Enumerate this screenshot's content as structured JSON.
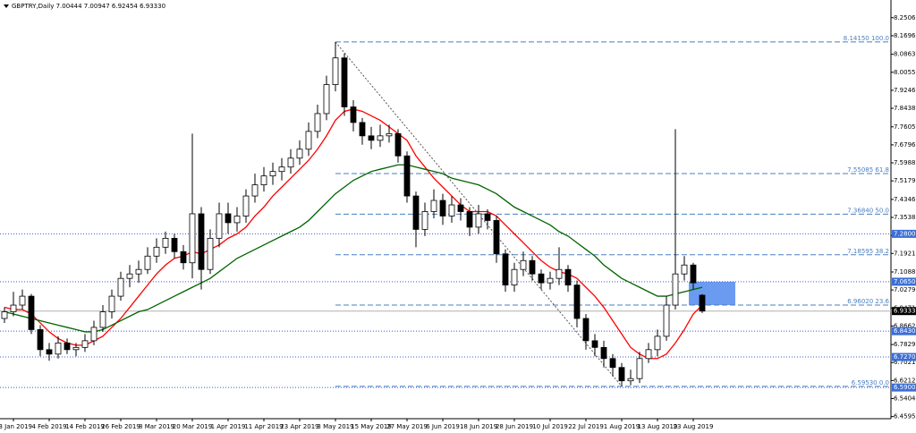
{
  "chart_data": {
    "type": "candlestick",
    "title": "GBPTRY,Daily  7.00444 7.00947 6.92454 6.93330",
    "ylim": [
      6.45,
      8.33
    ],
    "yticks": [
      8.25065,
      8.16965,
      8.08635,
      {
        "value": 8.0055,
        "label": "8.00550"
      },
      7.92465,
      {
        "value": 7.8438,
        "label": "7.84380"
      },
      {
        "value": 7.7605,
        "label": "7.76050"
      },
      7.67965,
      {
        "value": 7.5988,
        "label": "7.59880"
      },
      7.51795,
      7.43465,
      {
        "value": 7.3538,
        "label": "7.35380"
      },
      7.27295,
      {
        "value": 7.1921,
        "label": "7.19210"
      },
      {
        "value": 7.1088,
        "label": "7.10880"
      },
      7.02795,
      {
        "value": 6.9471,
        "label": "6.94710"
      },
      6.86625,
      6.78295,
      {
        "value": 6.7021,
        "label": "6.70210"
      },
      6.62125,
      {
        "value": 6.5404,
        "label": "6.54040"
      },
      6.45955
    ],
    "xticks": [
      {
        "value": 1,
        "label": "23 Jan 2019"
      },
      {
        "value": 5,
        "label": "4 Feb 2019"
      },
      {
        "value": 9,
        "label": "14 Feb 2019"
      },
      {
        "value": 13,
        "label": "26 Feb 2019"
      },
      {
        "value": 17,
        "label": "8 Mar 2019"
      },
      {
        "value": 21,
        "label": "20 Mar 2019"
      },
      {
        "value": 25,
        "label": "1 Apr 2019"
      },
      {
        "value": 29,
        "label": "11 Apr 2019"
      },
      {
        "value": 33,
        "label": "23 Apr 2019"
      },
      {
        "value": 37,
        "label": "3 May 2019"
      },
      {
        "value": 41,
        "label": "15 May 2019"
      },
      {
        "value": 45,
        "label": "27 May 2019"
      },
      {
        "value": 49,
        "label": "6 Jun 2019"
      },
      {
        "value": 53,
        "label": "18 Jun 2019"
      },
      {
        "value": 57,
        "label": "28 Jun 2019"
      },
      {
        "value": 61,
        "label": "10 Jul 2019"
      },
      {
        "value": 65,
        "label": "22 Jul 2019"
      },
      {
        "value": 69,
        "label": "1 Aug 2019"
      },
      {
        "value": 73,
        "label": "13 Aug 2019"
      },
      {
        "value": 77,
        "label": "23 Aug 2019"
      }
    ],
    "ohlc": [
      [
        6.9,
        6.95,
        6.88,
        6.93
      ],
      [
        6.93,
        7.02,
        6.91,
        6.96
      ],
      [
        6.96,
        7.03,
        6.94,
        7.0
      ],
      [
        7.0,
        7.01,
        6.83,
        6.85
      ],
      [
        6.85,
        6.87,
        6.73,
        6.76
      ],
      [
        6.76,
        6.79,
        6.71,
        6.74
      ],
      [
        6.74,
        6.82,
        6.72,
        6.79
      ],
      [
        6.79,
        6.81,
        6.74,
        6.76
      ],
      [
        6.76,
        6.79,
        6.73,
        6.77
      ],
      [
        6.77,
        6.83,
        6.75,
        6.8
      ],
      [
        6.8,
        6.89,
        6.78,
        6.86
      ],
      [
        6.86,
        6.96,
        6.84,
        6.93
      ],
      [
        6.93,
        7.03,
        6.9,
        7.0
      ],
      [
        7.0,
        7.11,
        6.98,
        7.08
      ],
      [
        7.08,
        7.14,
        7.04,
        7.1
      ],
      [
        7.1,
        7.16,
        7.06,
        7.12
      ],
      [
        7.12,
        7.22,
        7.1,
        7.18
      ],
      [
        7.18,
        7.26,
        7.15,
        7.22
      ],
      [
        7.22,
        7.29,
        7.19,
        7.26
      ],
      [
        7.26,
        7.28,
        7.17,
        7.2
      ],
      [
        7.2,
        7.23,
        7.12,
        7.15
      ],
      [
        7.15,
        7.73,
        7.08,
        7.37
      ],
      [
        7.37,
        7.4,
        7.03,
        7.12
      ],
      [
        7.12,
        7.3,
        7.1,
        7.26
      ],
      [
        7.26,
        7.42,
        7.22,
        7.37
      ],
      [
        7.37,
        7.42,
        7.28,
        7.33
      ],
      [
        7.33,
        7.4,
        7.29,
        7.36
      ],
      [
        7.36,
        7.48,
        7.33,
        7.45
      ],
      [
        7.45,
        7.55,
        7.42,
        7.5
      ],
      [
        7.5,
        7.58,
        7.47,
        7.54
      ],
      [
        7.54,
        7.6,
        7.5,
        7.56
      ],
      [
        7.56,
        7.62,
        7.52,
        7.58
      ],
      [
        7.58,
        7.66,
        7.55,
        7.62
      ],
      [
        7.62,
        7.7,
        7.59,
        7.66
      ],
      [
        7.66,
        7.78,
        7.63,
        7.74
      ],
      [
        7.74,
        7.86,
        7.71,
        7.82
      ],
      [
        7.82,
        7.99,
        7.79,
        7.95
      ],
      [
        7.95,
        8.1415,
        7.92,
        8.07
      ],
      [
        8.07,
        8.09,
        7.81,
        7.85
      ],
      [
        7.85,
        7.88,
        7.74,
        7.78
      ],
      [
        7.78,
        7.8,
        7.68,
        7.72
      ],
      [
        7.72,
        7.76,
        7.66,
        7.7
      ],
      [
        7.7,
        7.77,
        7.67,
        7.72
      ],
      [
        7.72,
        7.77,
        7.69,
        7.73
      ],
      [
        7.73,
        7.75,
        7.6,
        7.63
      ],
      [
        7.63,
        7.65,
        7.42,
        7.45
      ],
      [
        7.45,
        7.47,
        7.22,
        7.3
      ],
      [
        7.3,
        7.42,
        7.27,
        7.38
      ],
      [
        7.38,
        7.48,
        7.35,
        7.43
      ],
      [
        7.43,
        7.46,
        7.32,
        7.36
      ],
      [
        7.36,
        7.45,
        7.33,
        7.41
      ],
      [
        7.41,
        7.44,
        7.34,
        7.38
      ],
      [
        7.38,
        7.4,
        7.27,
        7.31
      ],
      [
        7.31,
        7.41,
        7.28,
        7.37
      ],
      [
        7.37,
        7.39,
        7.3,
        7.34
      ],
      [
        7.34,
        7.36,
        7.15,
        7.19
      ],
      [
        7.19,
        7.21,
        7.02,
        7.05
      ],
      [
        7.05,
        7.15,
        7.02,
        7.12
      ],
      [
        7.12,
        7.2,
        7.09,
        7.16
      ],
      [
        7.16,
        7.18,
        7.07,
        7.1
      ],
      [
        7.1,
        7.12,
        7.03,
        7.06
      ],
      [
        7.06,
        7.11,
        7.03,
        7.08
      ],
      [
        7.08,
        7.22,
        7.05,
        7.12
      ],
      [
        7.12,
        7.14,
        7.02,
        7.05
      ],
      [
        7.05,
        7.07,
        6.86,
        6.9
      ],
      [
        6.9,
        6.92,
        6.76,
        6.8
      ],
      [
        6.8,
        6.83,
        6.73,
        6.77
      ],
      [
        6.77,
        6.8,
        6.68,
        6.72
      ],
      [
        6.72,
        6.74,
        6.64,
        6.68
      ],
      [
        6.68,
        6.7,
        6.5953,
        6.62
      ],
      [
        6.62,
        6.67,
        6.6,
        6.63
      ],
      [
        6.63,
        6.75,
        6.61,
        6.72
      ],
      [
        6.72,
        6.79,
        6.7,
        6.76
      ],
      [
        6.76,
        6.85,
        6.73,
        6.82
      ],
      [
        6.82,
        7.0,
        6.8,
        6.96
      ],
      [
        6.96,
        7.75,
        6.94,
        7.1
      ],
      [
        7.1,
        7.18,
        7.07,
        7.14
      ],
      [
        7.14,
        7.15,
        7.03,
        7.06
      ],
      [
        7.00444,
        7.00947,
        6.92454,
        6.9333
      ]
    ],
    "series": [
      {
        "color": "#ff0000",
        "values": [
          6.95,
          6.94,
          6.94,
          6.92,
          6.88,
          6.84,
          6.81,
          6.79,
          6.78,
          6.78,
          6.8,
          6.82,
          6.86,
          6.9,
          6.95,
          7.0,
          7.05,
          7.1,
          7.14,
          7.17,
          7.18,
          7.2,
          7.19,
          7.21,
          7.23,
          7.26,
          7.28,
          7.31,
          7.36,
          7.4,
          7.45,
          7.49,
          7.53,
          7.57,
          7.61,
          7.66,
          7.72,
          7.79,
          7.83,
          7.84,
          7.83,
          7.81,
          7.79,
          7.76,
          7.73,
          7.7,
          7.63,
          7.58,
          7.53,
          7.49,
          7.45,
          7.41,
          7.38,
          7.38,
          7.38,
          7.36,
          7.32,
          7.28,
          7.24,
          7.2,
          7.16,
          7.13,
          7.11,
          7.1,
          7.08,
          7.04,
          7.0,
          6.95,
          6.89,
          6.83,
          6.77,
          6.74,
          6.72,
          6.72,
          6.74,
          6.79,
          6.85,
          6.92,
          6.96
        ]
      },
      {
        "color": "#006400",
        "values": [
          6.93,
          6.92,
          6.91,
          6.9,
          6.89,
          6.88,
          6.87,
          6.86,
          6.85,
          6.84,
          6.84,
          6.85,
          6.87,
          6.89,
          6.91,
          6.93,
          6.94,
          6.96,
          6.98,
          7.0,
          7.02,
          7.04,
          7.06,
          7.08,
          7.11,
          7.14,
          7.17,
          7.19,
          7.21,
          7.23,
          7.25,
          7.27,
          7.29,
          7.31,
          7.34,
          7.38,
          7.42,
          7.46,
          7.49,
          7.52,
          7.54,
          7.56,
          7.57,
          7.58,
          7.59,
          7.59,
          7.58,
          7.57,
          7.56,
          7.55,
          7.53,
          7.52,
          7.51,
          7.5,
          7.48,
          7.46,
          7.43,
          7.4,
          7.38,
          7.36,
          7.34,
          7.32,
          7.29,
          7.27,
          7.24,
          7.21,
          7.18,
          7.14,
          7.11,
          7.08,
          7.06,
          7.04,
          7.02,
          7.0,
          7.0,
          7.01,
          7.02,
          7.03,
          7.04
        ]
      }
    ],
    "fib_levels": [
      {
        "value": 8.1415,
        "label": "8.14150 100.0"
      },
      {
        "value": 7.55085,
        "label": "7.55085 61.8"
      },
      {
        "value": 7.3684,
        "label": "7.36840 50.0"
      },
      {
        "value": 7.18595,
        "label": "7.18595 38.2"
      },
      {
        "value": 6.9602,
        "label": "6.96020 23.6"
      },
      {
        "value": 6.5953,
        "label": "6.59530 0.0"
      }
    ],
    "levels": [
      {
        "value": 7.28,
        "label": "7.28000"
      },
      {
        "value": 7.065,
        "label": "7.06500"
      },
      {
        "value": 6.843,
        "label": "6.84300"
      },
      {
        "value": 6.727,
        "label": "6.72700"
      },
      {
        "value": 6.59,
        "label": "6.59000"
      }
    ],
    "zone": [
      7.065,
      6.9602
    ],
    "last_price": {
      "value": 6.9333,
      "label": "6.93330"
    }
  }
}
